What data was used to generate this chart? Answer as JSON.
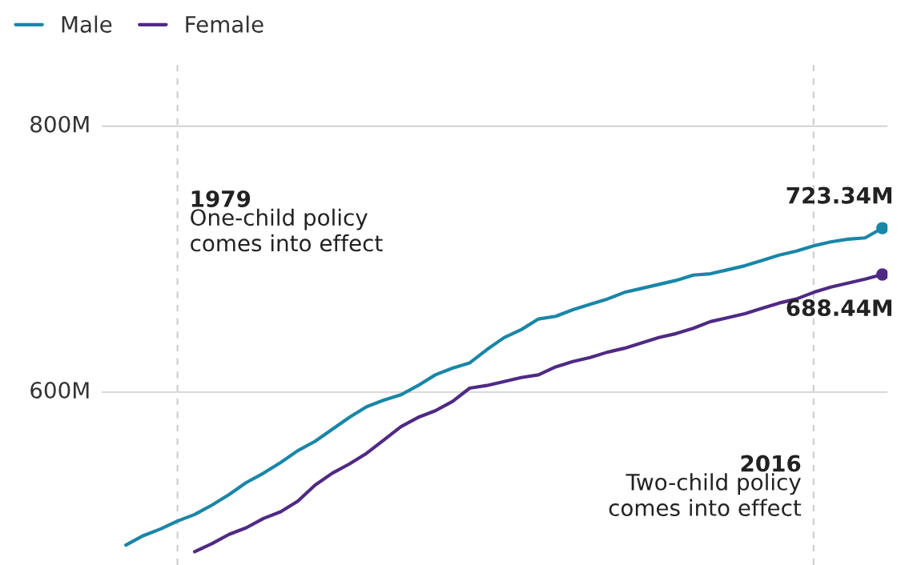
{
  "chart_data": {
    "type": "line",
    "series": [
      {
        "name": "Male",
        "color": "#1a86a8",
        "x": [
          1976,
          1977,
          1978,
          1979,
          1980,
          1981,
          1982,
          1983,
          1984,
          1985,
          1986,
          1987,
          1988,
          1989,
          1990,
          1991,
          1992,
          1993,
          1994,
          1995,
          1996,
          1997,
          1998,
          1999,
          2000,
          2001,
          2002,
          2003,
          2004,
          2005,
          2006,
          2007,
          2008,
          2009,
          2010,
          2011,
          2012,
          2013,
          2014,
          2015,
          2016,
          2017,
          2018,
          2019,
          2020
        ],
        "values": [
          485,
          492,
          497,
          503,
          508,
          515,
          523,
          532,
          539,
          547,
          556,
          563,
          572,
          581,
          589,
          594,
          598,
          605,
          613,
          618,
          622,
          632,
          641,
          647,
          655,
          657,
          662,
          666,
          670,
          675,
          678,
          681,
          684,
          688,
          689,
          692,
          695,
          699,
          703,
          706,
          710,
          713,
          715,
          716,
          723.34
        ],
        "value_labels": [
          null,
          null,
          null,
          null,
          null,
          null,
          null,
          null,
          null,
          null,
          null,
          null,
          null,
          null,
          null,
          null,
          null,
          null,
          null,
          null,
          null,
          null,
          null,
          null,
          null,
          null,
          null,
          null,
          null,
          null,
          null,
          null,
          null,
          null,
          null,
          null,
          null,
          null,
          null,
          null,
          null,
          null,
          null,
          null,
          "723.34M"
        ]
      },
      {
        "name": "Female",
        "color": "#4f2a84",
        "x": [
          1980,
          1981,
          1982,
          1983,
          1984,
          1985,
          1986,
          1987,
          1988,
          1989,
          1990,
          1991,
          1992,
          1993,
          1994,
          1995,
          1996,
          1997,
          1998,
          1999,
          2000,
          2001,
          2002,
          2003,
          2004,
          2005,
          2006,
          2007,
          2008,
          2009,
          2010,
          2011,
          2012,
          2013,
          2014,
          2015,
          2016,
          2017,
          2018,
          2019,
          2020
        ],
        "values": [
          480,
          486,
          493,
          498,
          505,
          510,
          518,
          530,
          539,
          546,
          554,
          564,
          574,
          581,
          586,
          593,
          603,
          605,
          608,
          611,
          613,
          619,
          623,
          626,
          630,
          633,
          637,
          641,
          644,
          648,
          653,
          656,
          659,
          663,
          667,
          670,
          675,
          679,
          682,
          685,
          688.44
        ],
        "value_labels": [
          null,
          null,
          null,
          null,
          null,
          null,
          null,
          null,
          null,
          null,
          null,
          null,
          null,
          null,
          null,
          null,
          null,
          null,
          null,
          null,
          null,
          null,
          null,
          null,
          null,
          null,
          null,
          null,
          null,
          null,
          null,
          null,
          null,
          null,
          null,
          null,
          null,
          null,
          null,
          null,
          "688.44M"
        ]
      }
    ],
    "xlim": [
      1974.6,
      2020.3
    ],
    "ylim": [
      470,
      846
    ],
    "yticks": [
      {
        "value": 600,
        "label": "600M"
      },
      {
        "value": 800,
        "label": "800M"
      }
    ],
    "tick_labels": "y",
    "grid": "y",
    "legend": "top left",
    "ref_lines": [
      {
        "axis": "x",
        "value": 1979,
        "label": "1979\nOne-child policy\ncomes into effect",
        "color": "#cccccc",
        "line_style": "dashed"
      },
      {
        "axis": "x",
        "value": 2016,
        "label": "2016\nTwo-child policy\ncomes into effect",
        "color": "#cccccc",
        "line_style": "dashed"
      }
    ]
  }
}
